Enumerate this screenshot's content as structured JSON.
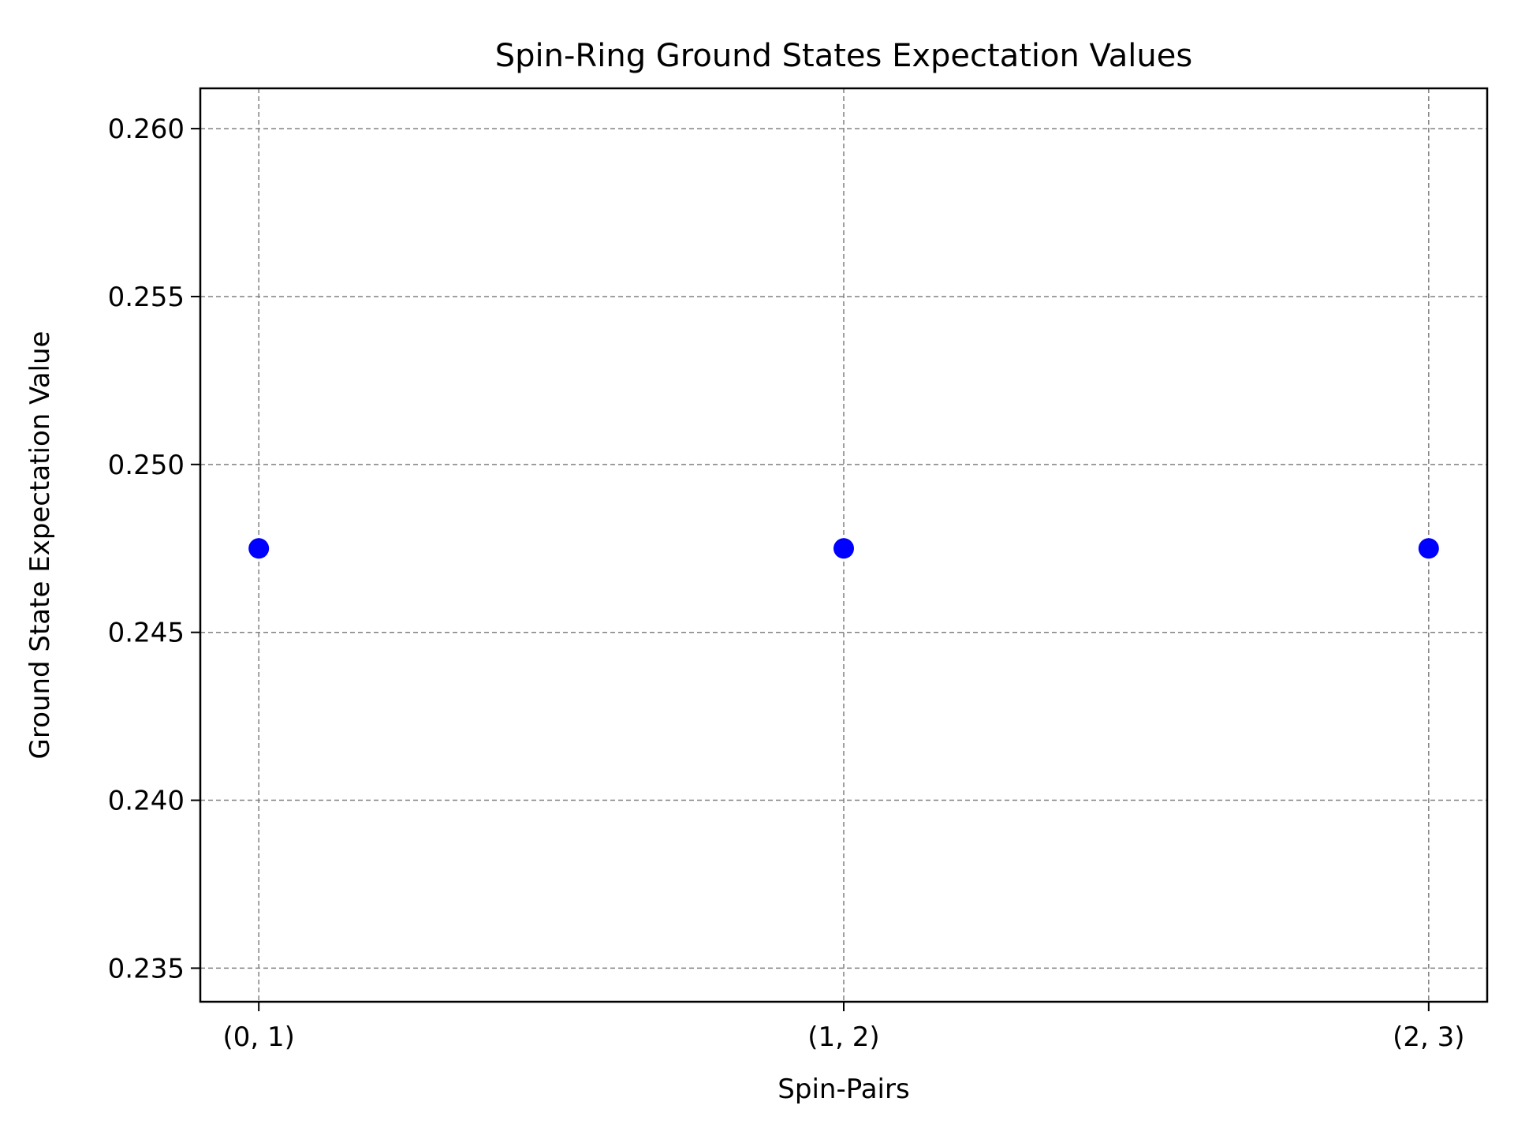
{
  "chart_data": {
    "type": "scatter",
    "title": "Spin-Ring Ground States Expectation Values",
    "xlabel": "Spin-Pairs",
    "ylabel": "Ground State Expectation Value",
    "categories": [
      "(0, 1)",
      "(1, 2)",
      "(2, 3)"
    ],
    "values": [
      0.2475,
      0.2475,
      0.2475
    ],
    "ylim": [
      0.234,
      0.2612
    ],
    "yticks": [
      0.235,
      0.24,
      0.245,
      0.25,
      0.255,
      0.26
    ],
    "ytick_labels": [
      "0.235",
      "0.240",
      "0.245",
      "0.250",
      "0.255",
      "0.260"
    ],
    "grid": true,
    "grid_style": "dashed",
    "marker_color": "#0000ff",
    "grid_color": "#808080",
    "axis_color": "#000000"
  }
}
